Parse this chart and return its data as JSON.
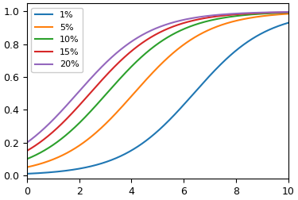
{
  "title": "",
  "xlabel": "",
  "ylabel": "",
  "xlim": [
    0,
    10
  ],
  "ylim": [
    -0.02,
    1.05
  ],
  "xticks": [
    0,
    2,
    4,
    6,
    8,
    10
  ],
  "yticks": [
    0.0,
    0.2,
    0.4,
    0.6,
    0.8,
    1.0
  ],
  "series": [
    {
      "label": "1%",
      "p0": 0.01,
      "r": 0.72,
      "color": "#1f77b4"
    },
    {
      "label": "5%",
      "p0": 0.05,
      "r": 0.72,
      "color": "#ff7f0e"
    },
    {
      "label": "10%",
      "p0": 0.1,
      "r": 0.72,
      "color": "#2ca02c"
    },
    {
      "label": "15%",
      "p0": 0.15,
      "r": 0.72,
      "color": "#d62728"
    },
    {
      "label": "20%",
      "p0": 0.2,
      "r": 0.72,
      "color": "#9467bd"
    }
  ],
  "figsize": [
    3.75,
    2.52
  ],
  "dpi": 100,
  "legend_fontsize": 8,
  "tick_labelsize": 9,
  "linewidth": 1.5
}
